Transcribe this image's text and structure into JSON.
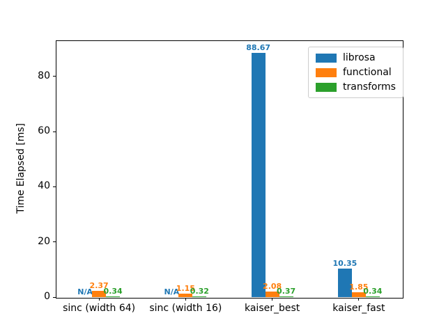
{
  "chart_data": {
    "type": "bar",
    "title": "",
    "xlabel": "",
    "ylabel": "Time Elapsed [ms]",
    "categories": [
      "sinc (width 64)",
      "sinc (width 16)",
      "kaiser_best",
      "kaiser_fast"
    ],
    "series": [
      {
        "name": "librosa",
        "color": "#1f77b4",
        "values": [
          null,
          null,
          88.67,
          10.35
        ],
        "labels": [
          "N/A",
          "N/A",
          "88.67",
          "10.35"
        ]
      },
      {
        "name": "functional",
        "color": "#ff7f0e",
        "values": [
          2.37,
          1.15,
          2.08,
          1.85
        ],
        "labels": [
          "2.37",
          "1.15",
          "2.08",
          "1.85"
        ]
      },
      {
        "name": "transforms",
        "color": "#2ca02c",
        "values": [
          0.34,
          0.32,
          0.37,
          0.34
        ],
        "labels": [
          "0.34",
          "0.32",
          "0.37",
          "0.34"
        ]
      }
    ],
    "missing_value_label": "N/A",
    "yticks": [
      0,
      20,
      40,
      60,
      80
    ],
    "ylim": [
      0,
      93.1
    ],
    "grid": false,
    "legend": {
      "position": "upper right",
      "entries": [
        "librosa",
        "functional",
        "transforms"
      ]
    }
  }
}
